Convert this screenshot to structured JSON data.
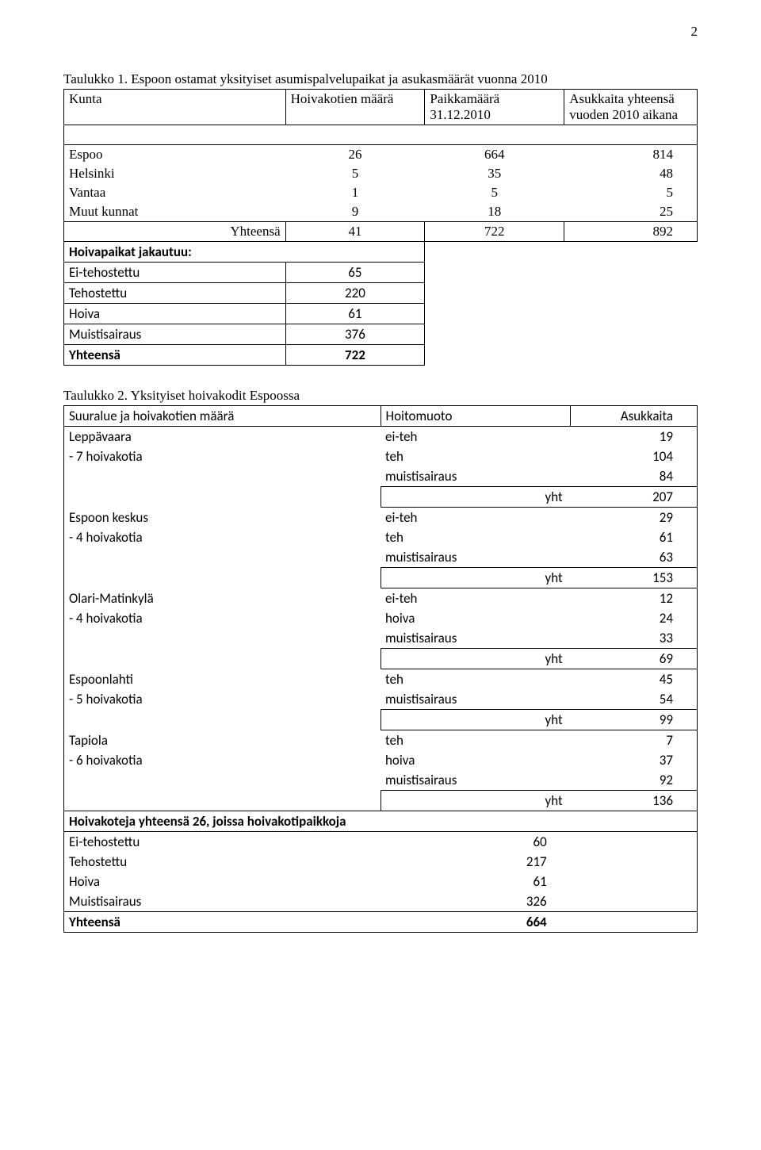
{
  "page_number": "2",
  "table1": {
    "caption": "Taulukko 1. Espoon ostamat yksityiset asumispalvelupaikat ja asukasmäärät vuonna 2010",
    "headers": {
      "kunta": "Kunta",
      "hoivakotien_maara": "Hoivakotien määrä",
      "paikkamaara_line1": "Paikkamäärä",
      "paikkamaara_line2": "31.12.2010",
      "asukkaita_line1": "Asukkaita yhteensä",
      "asukkaita_line2": "vuoden 2010 aikana"
    },
    "rows": [
      {
        "kunta": "Espoo",
        "a": "26",
        "b": "664",
        "c": "814"
      },
      {
        "kunta": "Helsinki",
        "a": "5",
        "b": "35",
        "c": "48"
      },
      {
        "kunta": "Vantaa",
        "a": "1",
        "b": "5",
        "c": "5"
      },
      {
        "kunta": "Muut kunnat",
        "a": "9",
        "b": "18",
        "c": "25"
      }
    ],
    "total": {
      "label": "Yhteensä",
      "a": "41",
      "b": "722",
      "c": "892"
    },
    "sub_header": "Hoivapaikat jakautuu:",
    "sub_rows": [
      {
        "label": "Ei-tehostettu",
        "val": "65"
      },
      {
        "label": "Tehostettu",
        "val": "220"
      },
      {
        "label": "Hoiva",
        "val": "61"
      },
      {
        "label": "Muistisairaus",
        "val": "376"
      }
    ],
    "sub_total": {
      "label": "Yhteensä",
      "val": "722"
    }
  },
  "table2": {
    "caption": "Taulukko 2. Yksityiset hoivakodit Espoossa",
    "headers": {
      "suuralue": "Suuralue ja hoivakotien määrä",
      "hoitomuoto": "Hoitomuoto",
      "asukkaita": "Asukkaita"
    },
    "groups": [
      {
        "name": "Leppävaara",
        "sub": " - 7 hoivakotia",
        "rows": [
          {
            "muoto": "ei-teh",
            "val": "19"
          },
          {
            "muoto": "teh",
            "val": "104"
          },
          {
            "muoto": "muistisairaus",
            "val": "84"
          }
        ],
        "yht_label": "yht",
        "yht_val": "207"
      },
      {
        "name": "Espoon keskus",
        "sub": " - 4 hoivakotia",
        "rows": [
          {
            "muoto": "ei-teh",
            "val": "29"
          },
          {
            "muoto": "teh",
            "val": "61"
          },
          {
            "muoto": "muistisairaus",
            "val": "63"
          }
        ],
        "yht_label": "yht",
        "yht_val": "153"
      },
      {
        "name": "Olari-Matinkylä",
        "sub": " - 4 hoivakotia",
        "rows": [
          {
            "muoto": "ei-teh",
            "val": "12"
          },
          {
            "muoto": "hoiva",
            "val": "24"
          },
          {
            "muoto": "muistisairaus",
            "val": "33"
          }
        ],
        "yht_label": "yht",
        "yht_val": "69"
      },
      {
        "name": "Espoonlahti",
        "sub": " - 5 hoivakotia",
        "rows": [
          {
            "muoto": "teh",
            "val": "45"
          },
          {
            "muoto": "muistisairaus",
            "val": "54"
          }
        ],
        "yht_label": "yht",
        "yht_val": "99"
      },
      {
        "name": "Tapiola",
        "sub": " - 6 hoivakotia",
        "rows": [
          {
            "muoto": "teh",
            "val": "7"
          },
          {
            "muoto": "hoiva",
            "val": "37"
          },
          {
            "muoto": "muistisairaus",
            "val": "92"
          }
        ],
        "yht_label": "yht",
        "yht_val": "136"
      }
    ],
    "summary_header": "Hoivakoteja yhteensä 26, joissa hoivakotipaikkoja",
    "summary_rows": [
      {
        "label": "Ei-tehostettu",
        "val": "60"
      },
      {
        "label": "Tehostettu",
        "val": "217"
      },
      {
        "label": "Hoiva",
        "val": "61"
      },
      {
        "label": "Muistisairaus",
        "val": "326"
      }
    ],
    "summary_total": {
      "label": "Yhteensä",
      "val": "664"
    }
  }
}
